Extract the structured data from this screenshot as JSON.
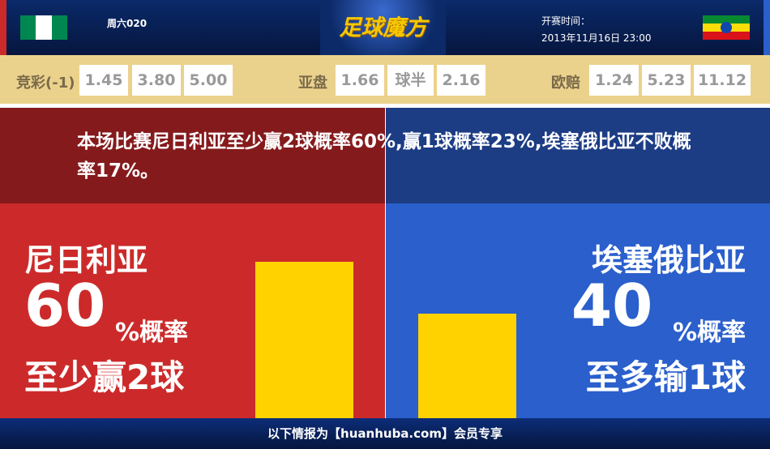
{
  "header": {
    "match_no": "周六020",
    "logo_text": "足球魔方",
    "time_label": "开赛时间：",
    "time_value": "2013年11月16日 23:00",
    "home_flag": "nigeria-flag",
    "away_flag": "ethiopia-flag"
  },
  "odds": {
    "jingcai": {
      "label": "竞彩(-1)",
      "values": [
        "1.45",
        "3.80",
        "5.00"
      ]
    },
    "yapan": {
      "label": "亚盘",
      "values": [
        "1.66",
        "球半",
        "2.16"
      ]
    },
    "oupei": {
      "label": "欧赔",
      "values": [
        "1.24",
        "5.23",
        "11.12"
      ]
    }
  },
  "summary": "本场比赛尼日利亚至少赢2球概率60%,赢1球概率23%,埃塞俄比亚不败概率17%。",
  "home": {
    "team": "尼日利亚",
    "percent": "60",
    "suffix": "%概率",
    "desc": "至少赢2球",
    "bar_value": 60,
    "color": "#cc2a2a"
  },
  "away": {
    "team": "埃塞俄比亚",
    "percent": "40",
    "suffix": "%概率",
    "desc": "至多输1球",
    "bar_value": 40,
    "color": "#2a5fcc"
  },
  "bar_color": "#ffd200",
  "footer": "以下情报为【huanhuba.com】会员专享"
}
